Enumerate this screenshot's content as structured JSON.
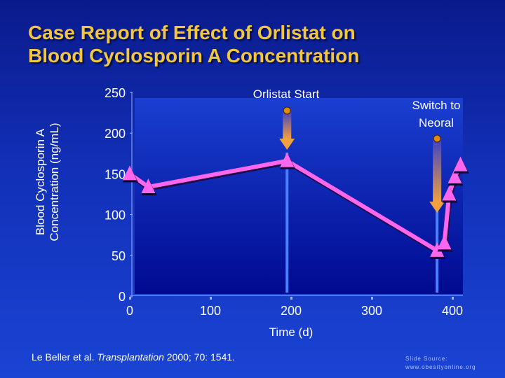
{
  "title_line1": "Case Report of Effect of Orlistat on",
  "title_line2": "Blood Cyclosporin A Concentration",
  "citation": {
    "authors": "Le Beller et al. ",
    "journal": "Transplantation",
    "details": " 2000; 70: 1541."
  },
  "slide_source": {
    "label": "Slide Source:",
    "url": "www.obesityonline.org"
  },
  "chart_data": {
    "type": "line",
    "xlabel": "Time (d)",
    "ylabel_line1": "Blood Cyclosporin A",
    "ylabel_line2": "Concentration (ng/mL)",
    "xlim": [
      0,
      400
    ],
    "ylim": [
      0,
      250
    ],
    "xticks": [
      0,
      100,
      200,
      300,
      400
    ],
    "yticks": [
      0,
      50,
      100,
      150,
      200,
      250
    ],
    "grid": false,
    "series": [
      {
        "x": [
          0,
          23,
          195,
          381,
          390,
          396,
          403,
          410
        ],
        "y": [
          150,
          134,
          166,
          56,
          65,
          125,
          146,
          161
        ],
        "color": "#ff66ee",
        "marker": "triangle"
      }
    ],
    "annotations": [
      {
        "text": "Orlistat Start",
        "x": 195
      },
      {
        "text_line1": "Switch to",
        "text_line2": "Neoral",
        "x": 381
      }
    ],
    "arrow_color": "#f0a040"
  }
}
